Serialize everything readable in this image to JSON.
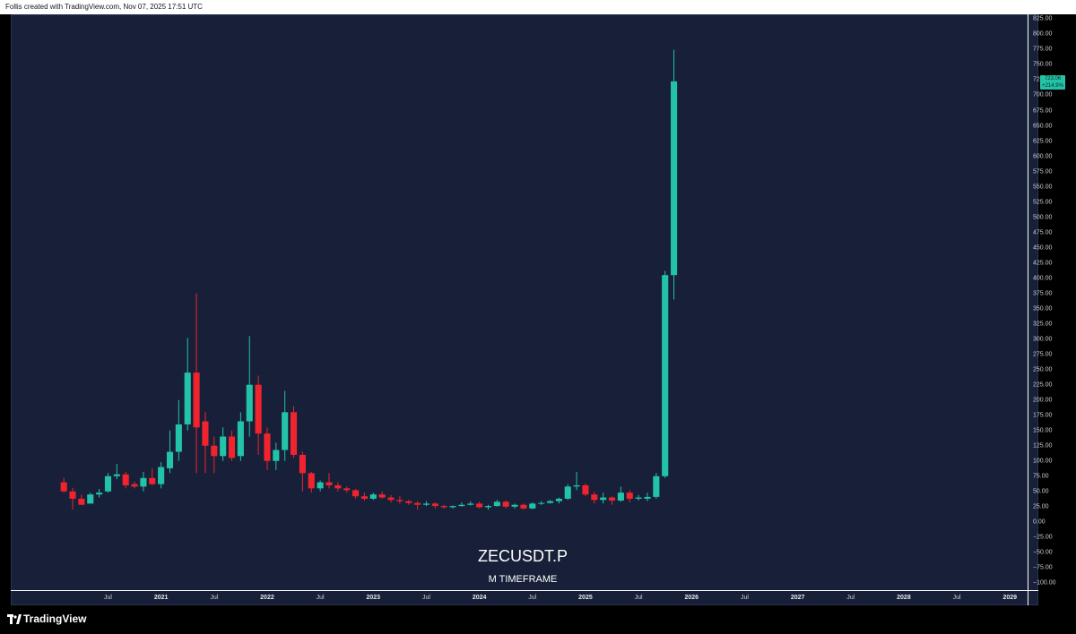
{
  "header": {
    "credit": "Follis created with TradingView.com, Nov 07, 2025 17:51 UTC"
  },
  "footer": {
    "brand": "TradingView"
  },
  "price_tag": {
    "value": "723.06",
    "change": "+214.9%"
  },
  "colors": {
    "up": "#22c3a6",
    "down": "#f0242e",
    "background": "#172038"
  },
  "chart_data": {
    "type": "candlestick",
    "title": "ZECUSDT.P",
    "subtitle": "M TIMEFRAME",
    "yticks": [
      "825.00",
      "800.00",
      "775.00",
      "750.00",
      "725.00",
      "700.00",
      "675.00",
      "650.00",
      "625.00",
      "600.00",
      "575.00",
      "550.00",
      "525.00",
      "500.00",
      "475.00",
      "450.00",
      "425.00",
      "400.00",
      "375.00",
      "350.00",
      "325.00",
      "300.00",
      "275.00",
      "250.00",
      "225.00",
      "200.00",
      "175.00",
      "150.00",
      "125.00",
      "100.00",
      "75.00",
      "50.00",
      "25.00",
      "0.00",
      "−25.00",
      "−50.00",
      "−75.00",
      "−100.00"
    ],
    "xticks": [
      {
        "label": "Jul",
        "month": "2020-07"
      },
      {
        "label": "2021",
        "month": "2021-01",
        "year": true
      },
      {
        "label": "Jul",
        "month": "2021-07"
      },
      {
        "label": "2022",
        "month": "2022-01",
        "year": true
      },
      {
        "label": "Jul",
        "month": "2022-07"
      },
      {
        "label": "2023",
        "month": "2023-01",
        "year": true
      },
      {
        "label": "Jul",
        "month": "2023-07"
      },
      {
        "label": "2024",
        "month": "2024-01",
        "year": true
      },
      {
        "label": "Jul",
        "month": "2024-07"
      },
      {
        "label": "2025",
        "month": "2025-01",
        "year": true
      },
      {
        "label": "Jul",
        "month": "2025-07"
      },
      {
        "label": "2026",
        "month": "2026-01",
        "year": true
      },
      {
        "label": "Jul",
        "month": "2026-07"
      },
      {
        "label": "2027",
        "month": "2027-01",
        "year": true
      },
      {
        "label": "Jul",
        "month": "2027-07"
      },
      {
        "label": "2028",
        "month": "2028-01",
        "year": true
      },
      {
        "label": "Jul",
        "month": "2028-07"
      },
      {
        "label": "2029",
        "month": "2029-01",
        "year": true
      }
    ],
    "ylim": [
      -112,
      833
    ],
    "xlim": [
      "2019-08",
      "2029-03"
    ],
    "candles": [
      {
        "t": "2020-02",
        "o": 65,
        "h": 72,
        "l": 48,
        "c": 50
      },
      {
        "t": "2020-03",
        "o": 50,
        "h": 56,
        "l": 20,
        "c": 38
      },
      {
        "t": "2020-04",
        "o": 38,
        "h": 45,
        "l": 28,
        "c": 28
      },
      {
        "t": "2020-05",
        "o": 30,
        "h": 48,
        "l": 30,
        "c": 45
      },
      {
        "t": "2020-06",
        "o": 45,
        "h": 54,
        "l": 40,
        "c": 48
      },
      {
        "t": "2020-07",
        "o": 50,
        "h": 80,
        "l": 48,
        "c": 75
      },
      {
        "t": "2020-08",
        "o": 75,
        "h": 95,
        "l": 70,
        "c": 78
      },
      {
        "t": "2020-09",
        "o": 78,
        "h": 82,
        "l": 55,
        "c": 60
      },
      {
        "t": "2020-10",
        "o": 62,
        "h": 66,
        "l": 55,
        "c": 58
      },
      {
        "t": "2020-11",
        "o": 58,
        "h": 82,
        "l": 50,
        "c": 72
      },
      {
        "t": "2020-12",
        "o": 72,
        "h": 88,
        "l": 60,
        "c": 62
      },
      {
        "t": "2021-01",
        "o": 62,
        "h": 98,
        "l": 55,
        "c": 90
      },
      {
        "t": "2021-02",
        "o": 88,
        "h": 150,
        "l": 80,
        "c": 115
      },
      {
        "t": "2021-03",
        "o": 115,
        "h": 200,
        "l": 100,
        "c": 160
      },
      {
        "t": "2021-04",
        "o": 160,
        "h": 302,
        "l": 150,
        "c": 245
      },
      {
        "t": "2021-05",
        "o": 245,
        "h": 375,
        "l": 80,
        "c": 155
      },
      {
        "t": "2021-06",
        "o": 165,
        "h": 180,
        "l": 80,
        "c": 125
      },
      {
        "t": "2021-07",
        "o": 125,
        "h": 140,
        "l": 80,
        "c": 108
      },
      {
        "t": "2021-08",
        "o": 108,
        "h": 155,
        "l": 100,
        "c": 140
      },
      {
        "t": "2021-09",
        "o": 140,
        "h": 150,
        "l": 100,
        "c": 105
      },
      {
        "t": "2021-10",
        "o": 108,
        "h": 180,
        "l": 100,
        "c": 165
      },
      {
        "t": "2021-11",
        "o": 165,
        "h": 305,
        "l": 140,
        "c": 225
      },
      {
        "t": "2021-12",
        "o": 225,
        "h": 240,
        "l": 110,
        "c": 145
      },
      {
        "t": "2022-01",
        "o": 145,
        "h": 155,
        "l": 85,
        "c": 100
      },
      {
        "t": "2022-02",
        "o": 100,
        "h": 130,
        "l": 85,
        "c": 118
      },
      {
        "t": "2022-03",
        "o": 118,
        "h": 215,
        "l": 100,
        "c": 180
      },
      {
        "t": "2022-04",
        "o": 180,
        "h": 190,
        "l": 105,
        "c": 110
      },
      {
        "t": "2022-05",
        "o": 110,
        "h": 115,
        "l": 50,
        "c": 80
      },
      {
        "t": "2022-06",
        "o": 80,
        "h": 82,
        "l": 48,
        "c": 55
      },
      {
        "t": "2022-07",
        "o": 55,
        "h": 68,
        "l": 50,
        "c": 65
      },
      {
        "t": "2022-08",
        "o": 65,
        "h": 80,
        "l": 55,
        "c": 60
      },
      {
        "t": "2022-09",
        "o": 60,
        "h": 65,
        "l": 50,
        "c": 55
      },
      {
        "t": "2022-10",
        "o": 55,
        "h": 58,
        "l": 48,
        "c": 52
      },
      {
        "t": "2022-11",
        "o": 52,
        "h": 54,
        "l": 38,
        "c": 42
      },
      {
        "t": "2022-12",
        "o": 42,
        "h": 48,
        "l": 35,
        "c": 38
      },
      {
        "t": "2023-01",
        "o": 38,
        "h": 48,
        "l": 36,
        "c": 45
      },
      {
        "t": "2023-02",
        "o": 45,
        "h": 50,
        "l": 38,
        "c": 40
      },
      {
        "t": "2023-03",
        "o": 40,
        "h": 44,
        "l": 32,
        "c": 36
      },
      {
        "t": "2023-04",
        "o": 36,
        "h": 42,
        "l": 30,
        "c": 34
      },
      {
        "t": "2023-05",
        "o": 34,
        "h": 36,
        "l": 28,
        "c": 31
      },
      {
        "t": "2023-06",
        "o": 31,
        "h": 34,
        "l": 20,
        "c": 28
      },
      {
        "t": "2023-07",
        "o": 28,
        "h": 34,
        "l": 26,
        "c": 30
      },
      {
        "t": "2023-08",
        "o": 30,
        "h": 32,
        "l": 22,
        "c": 26
      },
      {
        "t": "2023-09",
        "o": 26,
        "h": 28,
        "l": 22,
        "c": 24
      },
      {
        "t": "2023-10",
        "o": 24,
        "h": 27,
        "l": 22,
        "c": 26
      },
      {
        "t": "2023-11",
        "o": 26,
        "h": 32,
        "l": 25,
        "c": 28
      },
      {
        "t": "2023-12",
        "o": 28,
        "h": 34,
        "l": 27,
        "c": 30
      },
      {
        "t": "2024-01",
        "o": 30,
        "h": 33,
        "l": 22,
        "c": 24
      },
      {
        "t": "2024-02",
        "o": 24,
        "h": 28,
        "l": 20,
        "c": 26
      },
      {
        "t": "2024-03",
        "o": 26,
        "h": 36,
        "l": 25,
        "c": 33
      },
      {
        "t": "2024-04",
        "o": 33,
        "h": 35,
        "l": 22,
        "c": 25
      },
      {
        "t": "2024-05",
        "o": 25,
        "h": 30,
        "l": 22,
        "c": 28
      },
      {
        "t": "2024-06",
        "o": 28,
        "h": 30,
        "l": 20,
        "c": 22
      },
      {
        "t": "2024-07",
        "o": 22,
        "h": 32,
        "l": 21,
        "c": 30
      },
      {
        "t": "2024-08",
        "o": 30,
        "h": 34,
        "l": 28,
        "c": 31
      },
      {
        "t": "2024-09",
        "o": 31,
        "h": 36,
        "l": 30,
        "c": 34
      },
      {
        "t": "2024-10",
        "o": 34,
        "h": 40,
        "l": 30,
        "c": 38
      },
      {
        "t": "2024-11",
        "o": 38,
        "h": 62,
        "l": 36,
        "c": 58
      },
      {
        "t": "2024-12",
        "o": 58,
        "h": 82,
        "l": 52,
        "c": 60
      },
      {
        "t": "2025-01",
        "o": 60,
        "h": 63,
        "l": 42,
        "c": 45
      },
      {
        "t": "2025-02",
        "o": 45,
        "h": 50,
        "l": 30,
        "c": 36
      },
      {
        "t": "2025-03",
        "o": 36,
        "h": 48,
        "l": 30,
        "c": 40
      },
      {
        "t": "2025-04",
        "o": 40,
        "h": 42,
        "l": 28,
        "c": 35
      },
      {
        "t": "2025-05",
        "o": 35,
        "h": 58,
        "l": 33,
        "c": 48
      },
      {
        "t": "2025-06",
        "o": 48,
        "h": 52,
        "l": 32,
        "c": 38
      },
      {
        "t": "2025-07",
        "o": 38,
        "h": 44,
        "l": 35,
        "c": 40
      },
      {
        "t": "2025-08",
        "o": 38,
        "h": 48,
        "l": 34,
        "c": 41
      },
      {
        "t": "2025-09",
        "o": 41,
        "h": 80,
        "l": 38,
        "c": 75
      },
      {
        "t": "2025-10",
        "o": 75,
        "h": 412,
        "l": 72,
        "c": 405
      },
      {
        "t": "2025-11",
        "o": 405,
        "h": 775,
        "l": 365,
        "c": 723
      }
    ]
  }
}
